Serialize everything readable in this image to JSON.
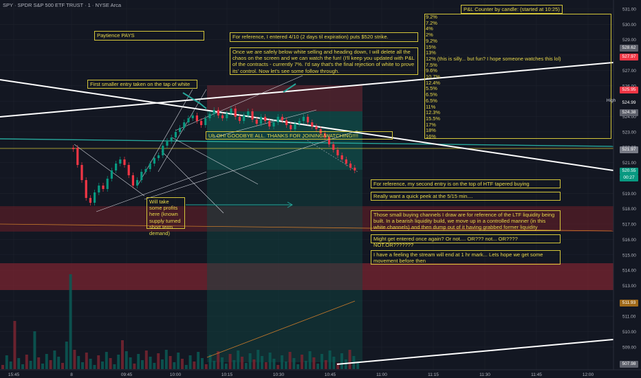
{
  "header": {
    "title": "SPY · SPDR S&P 500 ETF TRUST · 1 · NYSE Arca"
  },
  "pnl_panel": {
    "title": "P&L Counter by candle: (started at 10:25)",
    "entries": [
      "9.2%",
      "7.2%",
      "4%",
      "2%",
      "9.2%",
      "15%",
      "13%",
      "12% (this is silly... but fun? I hope someone watches this lol)",
      "7.5%",
      "9.6%",
      "10.7%",
      "12.4%",
      "5.5%",
      "6.5%",
      "6.5%",
      "11%",
      "12.3%",
      "15.5%",
      "17%",
      "18%",
      "16%"
    ]
  },
  "annotations": {
    "paytience": "Paytience PAYS",
    "reference_entry": "For reference, I entered 4/10 (2 days til expiration) puts $520 strike.",
    "safely_below": "Once we are safely below white selling and heading down, I will delete all the chaos on the screen and we can watch the fun! (I'll keep you updated with P&L of the contracts - currently 7%. I'd say that's the final rejection of white to prove its' control. Now let's see some follow through.",
    "first_entry": "First smaller entry taken on the tap of white",
    "goodbye": "Uh OH! GOODBYE ALL. THANKS FOR JOINING/WATCHING!!!!",
    "take_profits": "Will take some profits here (known supply turned short term demand)",
    "second_entry": "For reference, my second entry is on the top of HTF tapered buying",
    "peek": "Really want a quick peek at the 5/15 min....",
    "channels": "Those small buying channels I draw are for reference of the LTF liquidity being built. In a bearish liquidity build, we move up in a controlled manner (in this white channels) and then dump out of it having grabbed former liquidity",
    "might_enter": "Might get entered once again? Or not.... OR??? not... OR???? NOT.OR???????",
    "stream": "I have a feeling the stream will end at 1 hr mark... Lets hope we get some movement before then"
  },
  "price_axis": {
    "labels": [
      "531.00",
      "530.00",
      "529.00",
      "528.00",
      "527.00",
      "526.00",
      "525.00",
      "524.00",
      "523.00",
      "522.00",
      "521.00",
      "520.00",
      "519.00",
      "518.00",
      "517.00",
      "516.00",
      "515.00",
      "514.00",
      "513.00",
      "512.00",
      "511.00",
      "510.00",
      "509.00"
    ],
    "tags": [
      {
        "text": "528.62",
        "color": "#5d606b"
      },
      {
        "text": "527.97",
        "color": "#f23645"
      },
      {
        "text": "525.95",
        "color": "#f23645"
      },
      {
        "text": "524.99",
        "color": "#131722"
      },
      {
        "text": "524.38",
        "color": "#5d606b"
      },
      {
        "text": "521.97",
        "color": "#787b86"
      },
      {
        "text": "520.55",
        "color": "#089981"
      },
      {
        "text": "00:27",
        "color": "#089981"
      },
      {
        "text": "511.93",
        "color": "#a06a1a"
      },
      {
        "text": "507.98",
        "color": "#5d606b"
      }
    ],
    "high_label": "High"
  },
  "time_axis": {
    "labels": [
      "15:45",
      "8",
      "09:45",
      "10:00",
      "10:15",
      "10:30",
      "10:45",
      "11:00",
      "11:15",
      "11:30",
      "11:45",
      "12:00"
    ]
  },
  "colors": {
    "up": "#089981",
    "down": "#f23645",
    "annotation": "#d4c63a",
    "background": "#131722"
  }
}
